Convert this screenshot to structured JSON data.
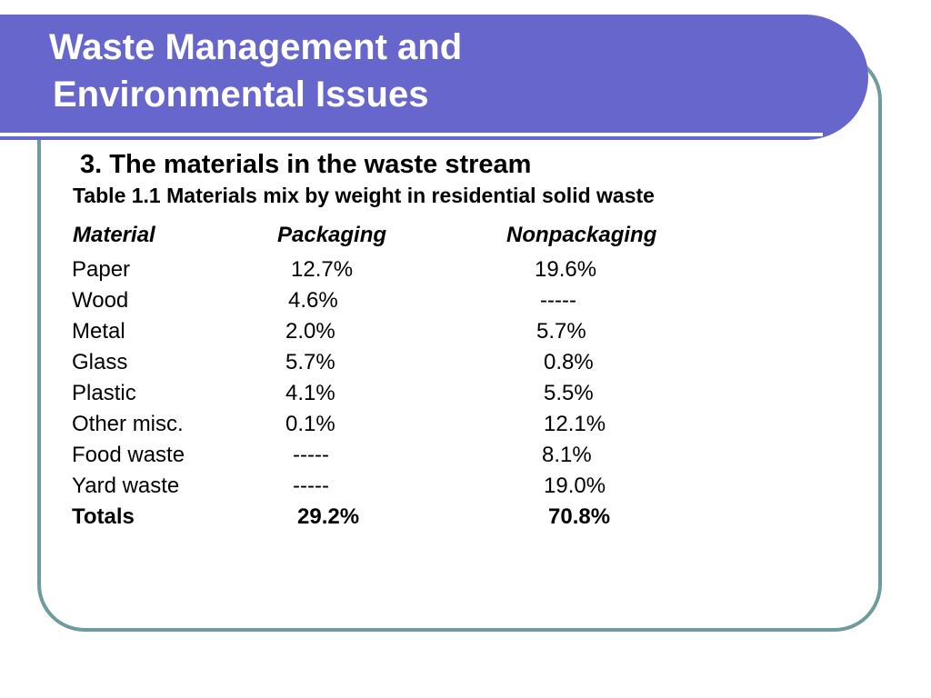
{
  "slide": {
    "title_line1": "Waste Management and",
    "title_line2": "Environmental Issues",
    "subtitle": "3. The materials in the waste stream",
    "caption": "Table 1.1 Materials mix by weight in residential solid waste"
  },
  "table": {
    "headers": [
      "Material",
      "Packaging",
      "Nonpackaging"
    ],
    "rows": [
      {
        "material": "Paper",
        "packaging": "12.7%",
        "nonpackaging": "19.6%"
      },
      {
        "material": "Wood",
        "packaging": "4.6%",
        "nonpackaging": "-----"
      },
      {
        "material": "Metal",
        "packaging": "2.0%",
        "nonpackaging": "5.7%"
      },
      {
        "material": "Glass",
        "packaging": "5.7%",
        "nonpackaging": "0.8%"
      },
      {
        "material": "Plastic",
        "packaging": "4.1%",
        "nonpackaging": "5.5%"
      },
      {
        "material": "Other misc.",
        "packaging": "0.1%",
        "nonpackaging": "12.1%"
      },
      {
        "material": "Food waste",
        "packaging": "-----",
        "nonpackaging": "8.1%"
      },
      {
        "material": "Yard waste",
        "packaging": "-----",
        "nonpackaging": "19.0%"
      }
    ],
    "totals": {
      "material": "Totals",
      "packaging": "29.2%",
      "nonpackaging": "70.8%"
    }
  },
  "colors": {
    "title_band": "#6666cc",
    "frame_border": "#6e9b9b",
    "title_text": "#ffffff",
    "body_text": "#000000"
  }
}
